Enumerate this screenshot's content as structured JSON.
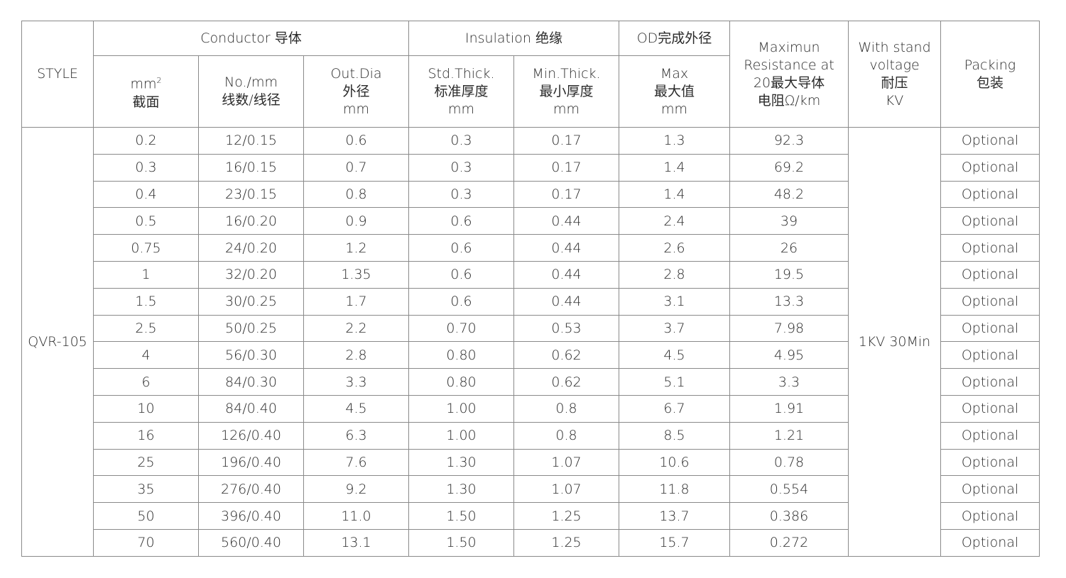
{
  "header": {
    "style": "STYLE",
    "conductor": "Conductor 导体",
    "insulation": "Insulation 绝缘",
    "od": "OD完成外径",
    "resistance": "Maximun\nResistance at\n20最大导体\n电阻Ω/km",
    "voltage": "With stand\nvoltage\n耐压\nKV",
    "packing": "Packing\n包装",
    "area_unit": "mm",
    "area_sup": "2",
    "area_cn": "截面",
    "strands": "No./mm\n线数/线径",
    "out_dia": "Out.Dia\n外径\nmm",
    "std_thick": "Std.Thick.\n标准厚度\nmm",
    "min_thick": "Min.Thick.\n最小厚度\nmm",
    "od_max": "Max\n最大值\nmm"
  },
  "style_value": "QVR-105",
  "voltage_value": "1KV 30Min",
  "rows": [
    [
      "0.2",
      "12/0.15",
      "0.6",
      "0.3",
      "0.17",
      "1.3",
      "92.3",
      "Optional"
    ],
    [
      "0.3",
      "16/0.15",
      "0.7",
      "0.3",
      "0.17",
      "1.4",
      "69.2",
      "Optional"
    ],
    [
      "0.4",
      "23/0.15",
      "0.8",
      "0.3",
      "0.17",
      "1.4",
      "48.2",
      "Optional"
    ],
    [
      "0.5",
      "16/0.20",
      "0.9",
      "0.6",
      "0.44",
      "2.4",
      "39",
      "Optional"
    ],
    [
      "0.75",
      "24/0.20",
      "1.2",
      "0.6",
      "0.44",
      "2.6",
      "26",
      "Optional"
    ],
    [
      "1",
      "32/0.20",
      "1.35",
      "0.6",
      "0.44",
      "2.8",
      "19.5",
      "Optional"
    ],
    [
      "1.5",
      "30/0.25",
      "1.7",
      "0.6",
      "0.44",
      "3.1",
      "13.3",
      "Optional"
    ],
    [
      "2.5",
      "50/0.25",
      "2.2",
      "0.70",
      "0.53",
      "3.7",
      "7.98",
      "Optional"
    ],
    [
      "4",
      "56/0.30",
      "2.8",
      "0.80",
      "0.62",
      "4.5",
      "4.95",
      "Optional"
    ],
    [
      "6",
      "84/0.30",
      "3.3",
      "0.80",
      "0.62",
      "5.1",
      "3.3",
      "Optional"
    ],
    [
      "10",
      "84/0.40",
      "4.5",
      "1.00",
      "0.8",
      "6.7",
      "1.91",
      "Optional"
    ],
    [
      "16",
      "126/0.40",
      "6.3",
      "1.00",
      "0.8",
      "8.5",
      "1.21",
      "Optional"
    ],
    [
      "25",
      "196/0.40",
      "7.6",
      "1.30",
      "1.07",
      "10.6",
      "0.78",
      "Optional"
    ],
    [
      "35",
      "276/0.40",
      "9.2",
      "1.30",
      "1.07",
      "11.8",
      "0.554",
      "Optional"
    ],
    [
      "50",
      "396/0.40",
      "11.0",
      "1.50",
      "1.25",
      "13.7",
      "0.386",
      "Optional"
    ],
    [
      "70",
      "560/0.40",
      "13.1",
      "1.50",
      "1.25",
      "15.7",
      "0.272",
      "Optional"
    ]
  ]
}
